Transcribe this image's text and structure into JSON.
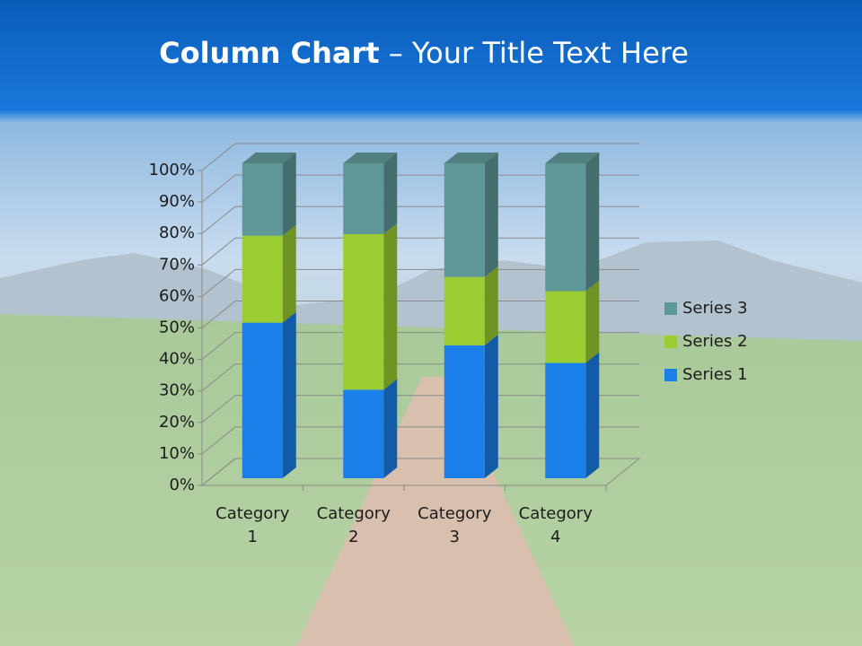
{
  "title_bold": "Column Chart",
  "title_rest": "– Your Title Text Here",
  "chart_data": {
    "type": "stacked_bar_3d",
    "categories": [
      "Category 1",
      "Category 2",
      "Category 3",
      "Category 4"
    ],
    "series": [
      {
        "name": "Series 1",
        "color": "#1a7fe8",
        "values": [
          49.4,
          28.1,
          42.2,
          36.6
        ]
      },
      {
        "name": "Series 2",
        "color": "#9acd32",
        "values": [
          27.6,
          49.4,
          21.7,
          22.8
        ]
      },
      {
        "name": "Series 3",
        "color": "#5f9797",
        "values": [
          23.0,
          22.5,
          36.1,
          40.6
        ]
      }
    ],
    "ylim": [
      0,
      100
    ],
    "yticks": [
      {
        "value": 0,
        "label": "0%"
      },
      {
        "value": 10,
        "label": "10%"
      },
      {
        "value": 20,
        "label": "20%"
      },
      {
        "value": 30,
        "label": "30%"
      },
      {
        "value": 40,
        "label": "40%"
      },
      {
        "value": 50,
        "label": "50%"
      },
      {
        "value": 60,
        "label": "60%"
      },
      {
        "value": 70,
        "label": "70%"
      },
      {
        "value": 80,
        "label": "80%"
      },
      {
        "value": 90,
        "label": "90%"
      },
      {
        "value": 100,
        "label": "100%"
      }
    ],
    "grid": true,
    "legend": "right"
  }
}
